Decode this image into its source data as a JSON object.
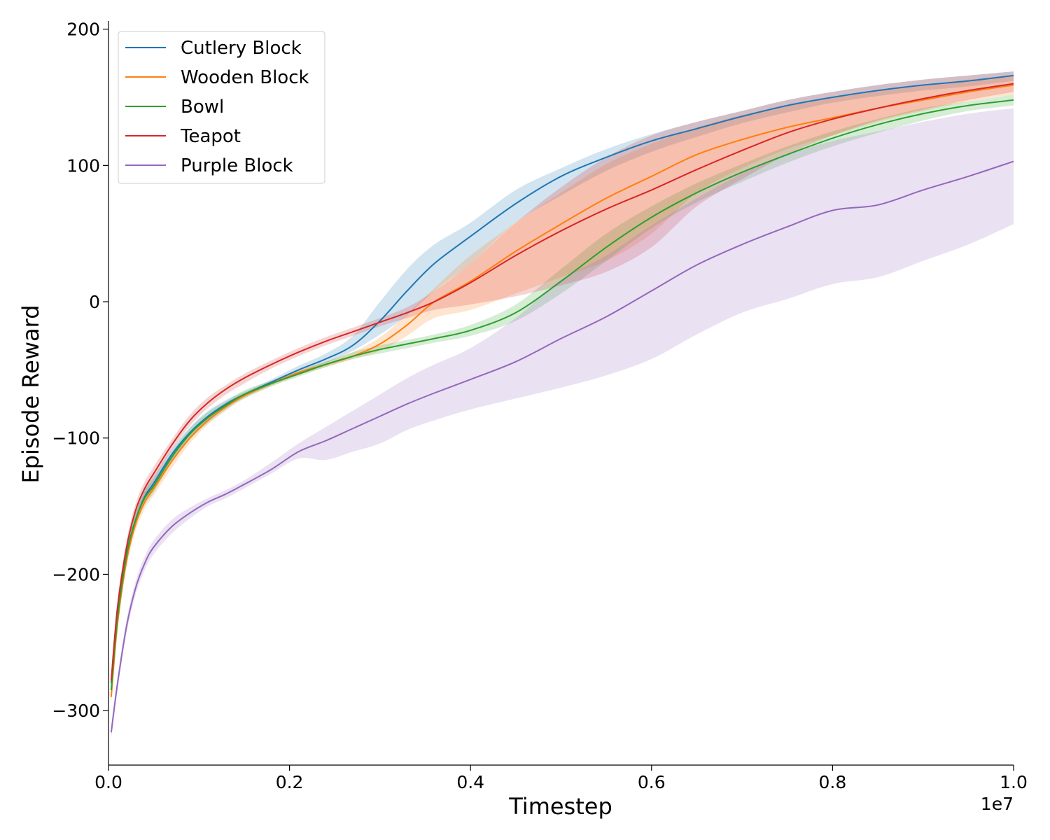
{
  "chart_data": {
    "type": "line",
    "xlabel": "Timestep",
    "ylabel": "Episode Reward",
    "x_offset_label": "1e7",
    "xlim": [
      0.0,
      1.0
    ],
    "ylim": [
      -340,
      206
    ],
    "x_ticks": [
      0.0,
      0.2,
      0.4,
      0.6,
      0.8,
      1.0
    ],
    "x_tick_labels": [
      "0.0",
      "0.2",
      "0.4",
      "0.6",
      "0.8",
      "1.0"
    ],
    "y_ticks": [
      -300,
      -200,
      -100,
      0,
      100,
      200
    ],
    "y_tick_labels": [
      "−300",
      "−200",
      "−100",
      "0",
      "100",
      "200"
    ],
    "legend_position": "top-left",
    "grid": false,
    "x": [
      0.003,
      0.01,
      0.02,
      0.03,
      0.04,
      0.05,
      0.07,
      0.09,
      0.11,
      0.13,
      0.15,
      0.18,
      0.21,
      0.24,
      0.27,
      0.3,
      0.33,
      0.36,
      0.4,
      0.45,
      0.5,
      0.55,
      0.6,
      0.65,
      0.7,
      0.75,
      0.8,
      0.85,
      0.9,
      0.95,
      1.0
    ],
    "series": [
      {
        "name": "Cutlery Block",
        "color": "#1f77b4",
        "values": [
          -280,
          -230,
          -185,
          -160,
          -143,
          -133,
          -112,
          -96,
          -84,
          -75,
          -68,
          -59,
          -50,
          -42,
          -32,
          -14,
          8,
          28,
          48,
          72,
          92,
          106,
          118,
          127,
          136,
          144,
          150,
          155,
          159,
          162,
          166
        ],
        "lower": [
          -285,
          -236,
          -190,
          -165,
          -148,
          -138,
          -118,
          -100,
          -88,
          -78,
          -70,
          -61,
          -52,
          -45,
          -36,
          -24,
          -10,
          8,
          28,
          58,
          78,
          96,
          110,
          121,
          131,
          139,
          146,
          151,
          155,
          158,
          162
        ],
        "upper": [
          -275,
          -225,
          -180,
          -155,
          -138,
          -128,
          -108,
          -92,
          -80,
          -72,
          -66,
          -57,
          -47,
          -38,
          -25,
          0,
          24,
          42,
          58,
          82,
          98,
          112,
          123,
          132,
          140,
          148,
          154,
          159,
          163,
          166,
          169
        ]
      },
      {
        "name": "Wooden Block",
        "color": "#ff7f0e",
        "values": [
          -290,
          -236,
          -190,
          -163,
          -147,
          -137,
          -117,
          -100,
          -87,
          -77,
          -69,
          -60,
          -52,
          -46,
          -40,
          -31,
          -17,
          0,
          15,
          37,
          57,
          76,
          92,
          108,
          119,
          128,
          135,
          142,
          148,
          154,
          159
        ],
        "lower": [
          -295,
          -241,
          -195,
          -168,
          -152,
          -142,
          -122,
          -104,
          -90,
          -80,
          -71,
          -62,
          -54,
          -48,
          -42,
          -36,
          -25,
          -12,
          -6,
          6,
          18,
          30,
          50,
          80,
          98,
          112,
          122,
          132,
          140,
          147,
          152
        ],
        "upper": [
          -285,
          -231,
          -185,
          -158,
          -142,
          -132,
          -112,
          -96,
          -84,
          -74,
          -67,
          -58,
          -50,
          -44,
          -37,
          -26,
          -9,
          10,
          34,
          58,
          80,
          101,
          116,
          128,
          137,
          144,
          150,
          155,
          159,
          163,
          166
        ]
      },
      {
        "name": "Bowl",
        "color": "#2ca02c",
        "values": [
          -285,
          -232,
          -186,
          -160,
          -144,
          -135,
          -114,
          -97,
          -85,
          -76,
          -68,
          -60,
          -53,
          -46,
          -40,
          -35,
          -31,
          -27,
          -21,
          -8,
          15,
          40,
          62,
          80,
          95,
          108,
          120,
          130,
          138,
          144,
          148
        ],
        "lower": [
          -290,
          -237,
          -191,
          -165,
          -149,
          -140,
          -118,
          -101,
          -89,
          -79,
          -71,
          -62,
          -55,
          -48,
          -42,
          -38,
          -34,
          -30,
          -25,
          -14,
          6,
          30,
          54,
          73,
          88,
          102,
          114,
          124,
          133,
          140,
          144
        ],
        "upper": [
          -280,
          -227,
          -181,
          -155,
          -139,
          -130,
          -110,
          -93,
          -81,
          -73,
          -65,
          -58,
          -51,
          -44,
          -37,
          -32,
          -28,
          -24,
          -17,
          -2,
          24,
          50,
          70,
          87,
          101,
          114,
          125,
          134,
          142,
          147,
          152
        ]
      },
      {
        "name": "Teapot",
        "color": "#d62728",
        "values": [
          -278,
          -224,
          -180,
          -153,
          -137,
          -126,
          -105,
          -87,
          -74,
          -64,
          -56,
          -46,
          -37,
          -29,
          -22,
          -15,
          -8,
          0,
          14,
          34,
          52,
          68,
          82,
          97,
          111,
          124,
          134,
          142,
          149,
          155,
          160
        ],
        "lower": [
          -283,
          -229,
          -185,
          -158,
          -142,
          -131,
          -109,
          -91,
          -78,
          -68,
          -60,
          -49,
          -40,
          -32,
          -25,
          -18,
          -12,
          -6,
          -2,
          4,
          12,
          22,
          40,
          70,
          90,
          108,
          122,
          133,
          141,
          148,
          154
        ],
        "upper": [
          -273,
          -219,
          -175,
          -148,
          -132,
          -121,
          -101,
          -83,
          -70,
          -61,
          -53,
          -43,
          -34,
          -26,
          -19,
          -12,
          -4,
          8,
          28,
          58,
          84,
          106,
          122,
          132,
          140,
          148,
          154,
          159,
          163,
          166,
          169
        ]
      },
      {
        "name": "Purple Block",
        "color": "#9467bd",
        "values": [
          -316,
          -280,
          -238,
          -210,
          -192,
          -180,
          -165,
          -155,
          -147,
          -141,
          -134,
          -123,
          -110,
          -102,
          -93,
          -84,
          -75,
          -67,
          -57,
          -44,
          -27,
          -11,
          8,
          27,
          42,
          55,
          67,
          71,
          82,
          92,
          103
        ],
        "lower": [
          -321,
          -285,
          -243,
          -215,
          -197,
          -185,
          -170,
          -159,
          -150,
          -144,
          -137,
          -126,
          -115,
          -116,
          -110,
          -104,
          -94,
          -87,
          -79,
          -71,
          -63,
          -54,
          -42,
          -24,
          -8,
          2,
          13,
          18,
          30,
          42,
          57
        ],
        "upper": [
          -311,
          -275,
          -233,
          -205,
          -187,
          -175,
          -160,
          -151,
          -144,
          -138,
          -131,
          -118,
          -104,
          -92,
          -80,
          -68,
          -56,
          -46,
          -34,
          -12,
          16,
          34,
          56,
          76,
          94,
          108,
          118,
          125,
          132,
          138,
          142
        ]
      }
    ]
  }
}
